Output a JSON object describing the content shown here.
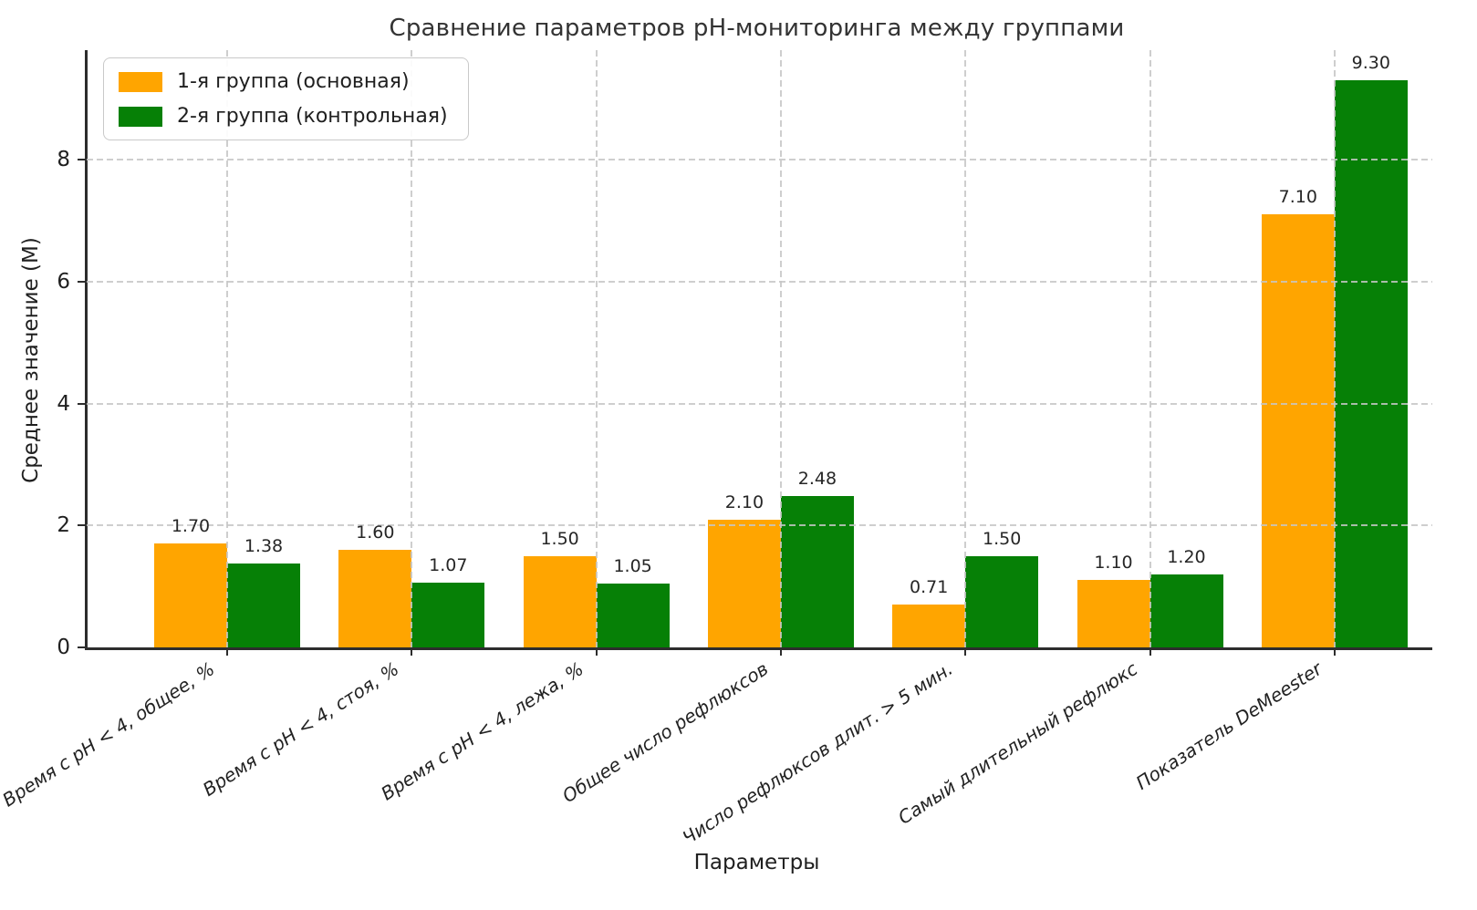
{
  "chart_data": {
    "type": "bar",
    "title": "Сравнение параметров pH-мониторинга между группами",
    "xlabel": "Параметры",
    "ylabel": "Среднее значение (М)",
    "categories": [
      "Время с pH < 4, общее, %",
      "Время с pH < 4, стоя, %",
      "Время с pH < 4, лежа, %",
      "Общее число рефлюксов",
      "Число рефлюксов длит. > 5 мин.",
      "Самый длительный рефлюкс",
      "Показатель DeMeester"
    ],
    "series": [
      {
        "name": "1-я группа (основная)",
        "color": "#FFA500",
        "values": [
          1.7,
          1.6,
          1.5,
          2.1,
          0.71,
          1.1,
          7.1
        ]
      },
      {
        "name": "2-я группа (контрольная)",
        "color": "#068006",
        "values": [
          1.38,
          1.07,
          1.05,
          2.48,
          1.5,
          1.2,
          9.3
        ]
      }
    ],
    "yticks": [
      0,
      2,
      4,
      6,
      8
    ],
    "ylim": [
      0,
      9.8
    ],
    "grid": "dashed-both-axes-over-bars",
    "grid_color": "#c6c6c6",
    "legend_position": "upper-left",
    "value_labels_format": "0.00",
    "axis_color": "#2d2d2d"
  }
}
